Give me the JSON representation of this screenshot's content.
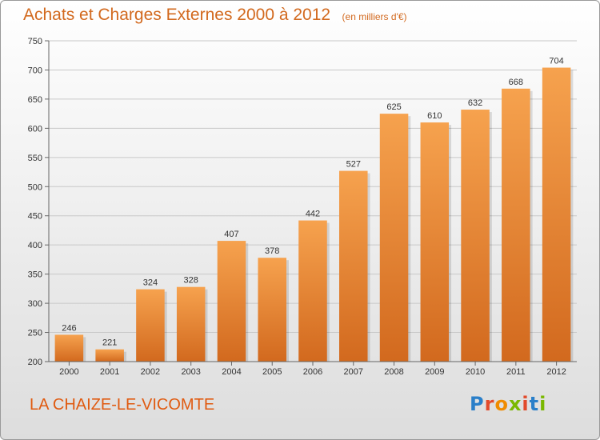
{
  "chart_data": {
    "type": "bar",
    "title": "Achats et Charges Externes 2000 à 2012",
    "subtitle": "(en milliers d'€)",
    "categories": [
      "2000",
      "2001",
      "2002",
      "2003",
      "2004",
      "2005",
      "2006",
      "2007",
      "2008",
      "2009",
      "2010",
      "2011",
      "2012"
    ],
    "values": [
      246,
      221,
      324,
      328,
      407,
      378,
      442,
      527,
      625,
      610,
      632,
      668,
      704
    ],
    "ylim": [
      200,
      750
    ],
    "yticks": [
      200,
      250,
      300,
      350,
      400,
      450,
      500,
      550,
      600,
      650,
      700,
      750
    ],
    "grid": true,
    "bar_color_top": "#f6a24e",
    "bar_color_bottom": "#d2691e"
  },
  "footer": {
    "location": "LA CHAIZE-LE-VICOMTE"
  },
  "logo": {
    "text": "Proxiti",
    "letter_colors": [
      "#2a7fc9",
      "#e24a2b",
      "#f08c00",
      "#7ab800",
      "#e24a2b",
      "#2a7fc9",
      "#7ab800"
    ]
  }
}
